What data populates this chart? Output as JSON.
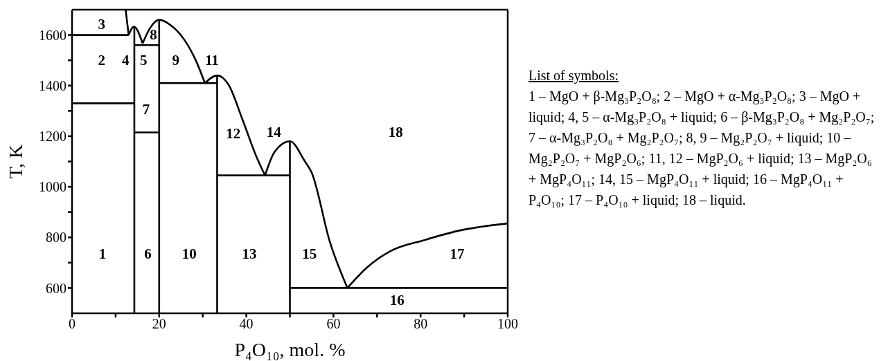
{
  "chart_data": {
    "type": "line",
    "xlabel": "P₄O₁₀,  mol. %",
    "ylabel": "T, K",
    "xlim": [
      0,
      100
    ],
    "ylim": [
      500,
      1700
    ],
    "xticks": [
      0,
      {
        "value": 10,
        "label": null
      },
      20,
      {
        "value": 30,
        "label": null
      },
      40,
      {
        "value": 50,
        "label": null
      },
      60,
      {
        "value": 70,
        "label": null
      },
      80,
      {
        "value": 90,
        "label": null
      },
      100
    ],
    "yticks": [
      600,
      {
        "value": 700,
        "label": null
      },
      800,
      {
        "value": 900,
        "label": null
      },
      1000,
      {
        "value": 1100,
        "label": null
      },
      1200,
      {
        "value": 1300,
        "label": null
      },
      1400,
      {
        "value": 1500,
        "label": null
      },
      1600
    ],
    "marker": "none",
    "line_style": "solid",
    "series": [
      {
        "color": "#000000",
        "x": [
          0,
          13
        ],
        "values": [
          1600,
          1600
        ]
      },
      {
        "color": "#000000",
        "x": [
          0,
          14.3
        ],
        "values": [
          1330,
          1330
        ]
      },
      {
        "color": "#000000",
        "x": [
          12.3,
          13
        ],
        "values": [
          1700,
          1600
        ]
      },
      {
        "color": "#000000",
        "x": [
          13,
          14.2,
          16.2
        ],
        "values": [
          1600,
          1633,
          1567
        ]
      },
      {
        "color": "#000000",
        "x": [
          16.2,
          18,
          20,
          22.7,
          25.9,
          28.5,
          30.5
        ],
        "values": [
          1567,
          1630,
          1660,
          1638,
          1578,
          1496,
          1410
        ]
      },
      {
        "color": "#000000",
        "x": [
          30.5,
          33.3,
          35.9,
          39.1,
          42.3,
          44.3
        ],
        "values": [
          1410,
          1440,
          1404,
          1267,
          1120,
          1045
        ]
      },
      {
        "color": "#000000",
        "x": [
          44.3,
          46.5,
          50,
          53.4,
          55,
          59.2,
          63.2
        ],
        "values": [
          1045,
          1138,
          1180,
          1102,
          1056,
          781,
          600
        ]
      },
      {
        "color": "#000000",
        "x": [
          63.2,
          67.7,
          73,
          81,
          88.9,
          100
        ],
        "values": [
          600,
          681,
          745,
          790,
          827,
          855
        ]
      },
      {
        "color": "#000000",
        "x": [
          14.3,
          14.3
        ],
        "values": [
          500,
          1630
        ]
      },
      {
        "color": "#000000",
        "x": [
          20,
          20
        ],
        "values": [
          500,
          1660
        ]
      },
      {
        "color": "#000000",
        "x": [
          14.3,
          20
        ],
        "values": [
          1560,
          1560
        ]
      },
      {
        "color": "#000000",
        "x": [
          14.3,
          20
        ],
        "values": [
          1215,
          1215
        ]
      },
      {
        "color": "#000000",
        "x": [
          20,
          33.3
        ],
        "values": [
          1410,
          1410
        ]
      },
      {
        "color": "#000000",
        "x": [
          33.3,
          33.3
        ],
        "values": [
          500,
          1440
        ]
      },
      {
        "color": "#000000",
        "x": [
          33.3,
          50
        ],
        "values": [
          1045,
          1045
        ]
      },
      {
        "color": "#000000",
        "x": [
          50,
          50
        ],
        "values": [
          500,
          1180
        ]
      },
      {
        "color": "#000000",
        "x": [
          50,
          100
        ],
        "values": [
          600,
          600
        ]
      }
    ],
    "annotations": [
      "1",
      "2",
      "3",
      "4",
      "5",
      "6",
      "7",
      "8",
      "9",
      "10",
      "11",
      "12",
      "13",
      "14",
      "15",
      "16",
      "17",
      "18",
      "List of symbols:",
      "1 – MgO + β-Mg₃P₂O₈; 2 – MgO + α-Mg₃P₂O₈; 3 – MgO + liquid; 4, 5 – α-Mg₃P₂O₈ + liquid; 6 – β-Mg₃P₂O₈ + Mg₂P₂O₇; 7 – α-Mg₃P₂O₈ + Mg₂P₂O₇; 8, 9 – Mg₂P₂O₇ + liquid; 10 – Mg₂P₂O₇ + MgP₂O₆; 11, 12 – MgP₂O₆ + liquid; 13 – MgP₂O₆ + MgP₄O₁₁; 14, 15 – MgP₄O₁₁ + liquid; 16 – MgP₄O₁₁ + P₄O₁₀; 17 – P₄O₁₀ + liquid; 18 – liquid."
    ]
  }
}
